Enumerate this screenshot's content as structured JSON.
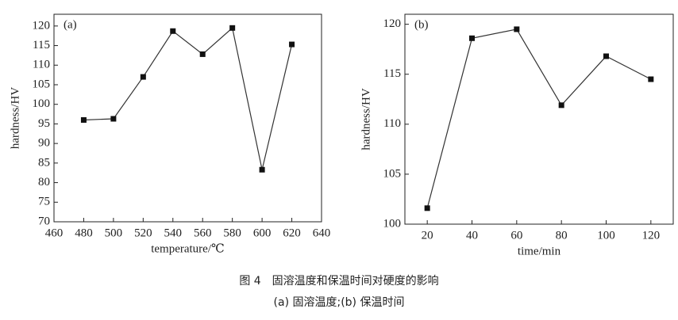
{
  "chart_data": [
    {
      "type": "line",
      "panel_label": "(a)",
      "x_label": "temperature/℃",
      "y_label": "hardness/HV",
      "x": [
        480,
        500,
        520,
        540,
        560,
        580,
        600,
        620
      ],
      "series": [
        {
          "color": "#333333",
          "values": [
            96,
            96.3,
            107,
            118.7,
            112.8,
            119.5,
            83.3,
            115.3
          ]
        }
      ],
      "xlim": [
        460,
        640
      ],
      "xticks": [
        460,
        480,
        500,
        520,
        540,
        560,
        580,
        600,
        620,
        640
      ],
      "ylim": [
        70,
        123
      ],
      "yticks": [
        70,
        75,
        80,
        85,
        90,
        95,
        100,
        105,
        110,
        115,
        120
      ],
      "grid": false
    },
    {
      "type": "line",
      "panel_label": "(b)",
      "x_label": "time/min",
      "y_label": "hardness/HV",
      "x": [
        20,
        40,
        60,
        80,
        100,
        120
      ],
      "series": [
        {
          "color": "#333333",
          "values": [
            101.6,
            118.6,
            119.5,
            111.9,
            116.8,
            114.5
          ]
        }
      ],
      "xlim": [
        10,
        130
      ],
      "xticks": [
        20,
        40,
        60,
        80,
        100,
        120
      ],
      "ylim": [
        100,
        121
      ],
      "yticks": [
        100,
        105,
        110,
        115,
        120
      ],
      "grid": false
    }
  ],
  "caption": {
    "title": "图 4　固溶温度和保温时间对硬度的影响",
    "subtitle": "(a) 固溶温度;(b) 保温时间"
  }
}
